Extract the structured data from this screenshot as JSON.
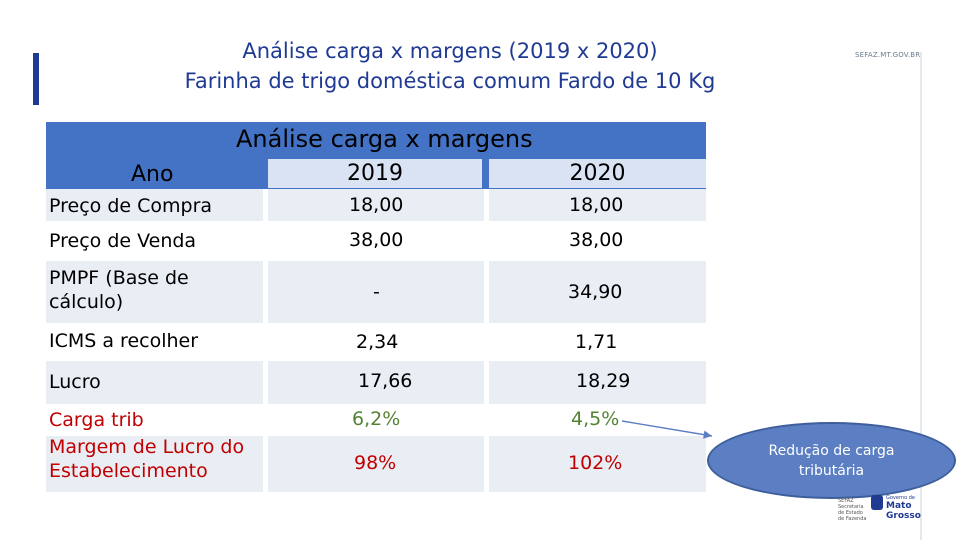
{
  "site_url": "SEFAZ.MT.GOV.BR",
  "title": {
    "line1": "Análise carga x margens (2019 x 2020)",
    "line2": "Farinha de trigo doméstica comum Fardo de 10 Kg"
  },
  "table": {
    "header": "Análise carga x margens",
    "col_ano": "Ano",
    "year1": "2019",
    "year2": "2020",
    "rows": [
      {
        "label": "Preço de Compra",
        "v2019": "18,00",
        "v2020": "18,00"
      },
      {
        "label": "Preço de Venda",
        "v2019": "38,00",
        "v2020": "38,00"
      },
      {
        "label": "PMPF (Base de cálculo)",
        "v2019": "-",
        "v2020": "34,90"
      },
      {
        "label": "ICMS a recolher",
        "v2019": "2,34",
        "v2020": "1,71"
      },
      {
        "label": "Lucro",
        "v2019": "17,66",
        "v2020": "18,29"
      },
      {
        "label": "Carga trib",
        "v2019": "6,2%",
        "v2020": "4,5%"
      },
      {
        "label": "Margem de Lucro do Estabelecimento",
        "v2019": "98%",
        "v2020": "102%"
      }
    ]
  },
  "callout": "Redução de carga tributária",
  "logo": {
    "sub": "SEFAZ Secretaria de Estado de Fazenda",
    "name_line1": "Governo de",
    "name_line2": "Mato",
    "name_line3": "Grosso"
  },
  "colors": {
    "header_bg": "#4472c4",
    "year_box_bg": "#dae3f3",
    "label_red": "#c00000",
    "value_green": "#548235",
    "title_blue": "#1f3a93",
    "callout_fill": "#5b7fc2"
  }
}
